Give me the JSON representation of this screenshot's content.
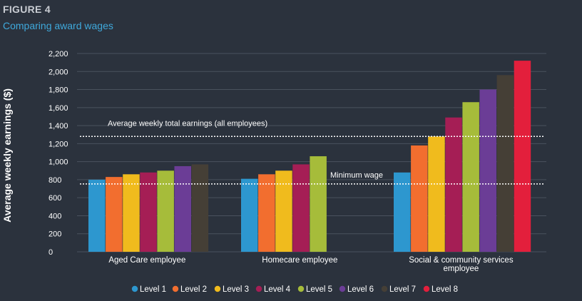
{
  "header": {
    "figure_label": "FIGURE 4",
    "title": "Comparing award wages"
  },
  "chart_data": {
    "type": "bar",
    "ylabel": "Average weekly earnings ($)",
    "ylim": [
      0,
      2200
    ],
    "yticks": [
      0,
      200,
      400,
      600,
      800,
      "1,000",
      "1,200",
      "1,400",
      "1,600",
      "1,800",
      "2,000",
      "2,200"
    ],
    "categories": [
      [
        "Aged Care employee"
      ],
      [
        "Homecare employee"
      ],
      [
        "Social & community services",
        "employee"
      ]
    ],
    "series": [
      {
        "name": "Level 1",
        "color": "#2d97cf",
        "values": [
          800,
          810,
          880
        ]
      },
      {
        "name": "Level 2",
        "color": "#f26e2f",
        "values": [
          830,
          860,
          1180
        ]
      },
      {
        "name": "Level 3",
        "color": "#f0bb1d",
        "values": [
          860,
          900,
          1280
        ]
      },
      {
        "name": "Level 4",
        "color": "#a51e55",
        "values": [
          880,
          970,
          1490
        ]
      },
      {
        "name": "Level 5",
        "color": "#a6bc3a",
        "values": [
          900,
          1060,
          1660
        ]
      },
      {
        "name": "Level 6",
        "color": "#6b3d96",
        "values": [
          950,
          null,
          1800
        ]
      },
      {
        "name": "Level 7",
        "color": "#453f36",
        "values": [
          970,
          null,
          1960
        ]
      },
      {
        "name": "Level 8",
        "color": "#e31f3c",
        "values": [
          null,
          null,
          2120
        ]
      }
    ],
    "reference_lines": [
      {
        "label": "Average weekly total earnings (all employees)",
        "value": 1280,
        "label_position": "left"
      },
      {
        "label": "Minimum wage",
        "value": 753,
        "label_position": "middle"
      }
    ],
    "legend_position": "bottom",
    "grid": true
  }
}
